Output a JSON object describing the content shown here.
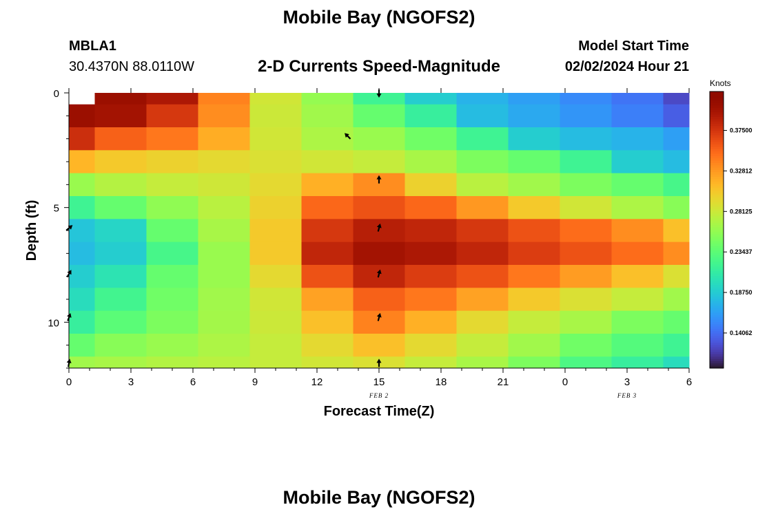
{
  "page": {
    "top_title": "Mobile Bay (NGOFS2)",
    "bottom_title": "Mobile Bay (NGOFS2)",
    "station_id": "MBLA1",
    "station_coords": "30.4370N  88.0110W",
    "subtitle": "2-D Currents Speed-Magnitude",
    "model_start_label": "Model Start Time",
    "model_start_value": "02/02/2024 Hour 21"
  },
  "chart_data": {
    "type": "heatmap",
    "title": "2-D Currents Speed-Magnitude",
    "xlabel": "Forecast Time(Z)",
    "ylabel": "Depth (ft)",
    "x_ticks": [
      "0",
      "3",
      "6",
      "9",
      "12",
      "15",
      "18",
      "21",
      "0",
      "3",
      "6"
    ],
    "x_tick_hours": [
      0,
      3,
      6,
      9,
      12,
      15,
      18,
      21,
      24,
      27,
      30
    ],
    "date_labels": [
      {
        "label": "FEB 2",
        "hour": 15
      },
      {
        "label": "FEB 3",
        "hour": 27
      }
    ],
    "y_ticks": [
      "0",
      "5",
      "10"
    ],
    "y_tick_values": [
      0,
      5,
      10
    ],
    "xlim": [
      0,
      30
    ],
    "ylim": [
      0,
      12
    ],
    "column_hours": [
      0,
      2.5,
      5,
      7.5,
      10,
      12.5,
      15,
      17.5,
      20,
      22.5,
      25,
      27.5,
      30
    ],
    "row_depths": [
      0,
      1,
      2,
      3,
      4,
      5,
      6,
      7,
      8,
      9,
      10,
      11,
      12
    ],
    "speed_knots": [
      [
        null,
        0.405,
        0.395,
        0.34,
        0.285,
        0.26,
        0.22,
        0.19,
        0.175,
        0.165,
        0.155,
        0.145,
        0.125
      ],
      [
        0.405,
        0.4,
        0.375,
        0.335,
        0.283,
        0.265,
        0.24,
        0.215,
        0.18,
        0.17,
        0.16,
        0.15,
        0.135
      ],
      [
        0.38,
        0.355,
        0.345,
        0.32,
        0.285,
        0.27,
        0.262,
        0.245,
        0.22,
        0.19,
        0.18,
        0.175,
        0.165
      ],
      [
        0.315,
        0.305,
        0.3,
        0.295,
        0.29,
        0.285,
        0.28,
        0.268,
        0.25,
        0.24,
        0.22,
        0.19,
        0.18
      ],
      [
        0.262,
        0.273,
        0.28,
        0.284,
        0.295,
        0.318,
        0.335,
        0.3,
        0.275,
        0.265,
        0.25,
        0.24,
        0.225
      ],
      [
        0.22,
        0.24,
        0.258,
        0.275,
        0.3,
        0.352,
        0.362,
        0.352,
        0.33,
        0.305,
        0.285,
        0.27,
        0.255
      ],
      [
        0.185,
        0.195,
        0.24,
        0.268,
        0.305,
        0.375,
        0.39,
        0.385,
        0.375,
        0.362,
        0.35,
        0.335,
        0.31
      ],
      [
        0.18,
        0.19,
        0.225,
        0.262,
        0.305,
        0.385,
        0.4,
        0.395,
        0.385,
        0.372,
        0.362,
        0.35,
        0.335
      ],
      [
        0.19,
        0.205,
        0.24,
        0.262,
        0.295,
        0.362,
        0.385,
        0.372,
        0.362,
        0.345,
        0.328,
        0.31,
        0.29
      ],
      [
        0.2,
        0.222,
        0.245,
        0.265,
        0.285,
        0.325,
        0.355,
        0.345,
        0.325,
        0.305,
        0.29,
        0.28,
        0.265
      ],
      [
        0.215,
        0.235,
        0.25,
        0.266,
        0.283,
        0.31,
        0.34,
        0.318,
        0.295,
        0.28,
        0.268,
        0.25,
        0.24
      ],
      [
        0.24,
        0.255,
        0.262,
        0.27,
        0.28,
        0.295,
        0.31,
        0.295,
        0.28,
        0.265,
        0.245,
        0.232,
        0.22
      ],
      [
        0.265,
        0.268,
        0.272,
        0.275,
        0.28,
        0.285,
        0.29,
        0.28,
        0.268,
        0.25,
        0.228,
        0.215,
        0.2
      ]
    ],
    "arrows": [
      {
        "hour": 15,
        "depth": 0,
        "dir_deg": 180
      },
      {
        "hour": 13.5,
        "depth": 1.9,
        "dir_deg": 315
      },
      {
        "hour": 15,
        "depth": 3.8,
        "dir_deg": 0
      },
      {
        "hour": 15,
        "depth": 5.9,
        "dir_deg": 15
      },
      {
        "hour": 15,
        "depth": 7.9,
        "dir_deg": 15
      },
      {
        "hour": 15,
        "depth": 9.8,
        "dir_deg": 15
      },
      {
        "hour": 15,
        "depth": 11.8,
        "dir_deg": 0
      },
      {
        "hour": 0,
        "depth": 5.9,
        "dir_deg": 50
      },
      {
        "hour": 0,
        "depth": 7.9,
        "dir_deg": 30
      },
      {
        "hour": 0,
        "depth": 9.8,
        "dir_deg": 20
      },
      {
        "hour": 0,
        "depth": 11.8,
        "dir_deg": 10
      }
    ],
    "colorbar": {
      "title": "Knots",
      "min": 0.1,
      "max": 0.42,
      "ticks": [
        "0.37500",
        "0.32812",
        "0.28125",
        "0.23437",
        "0.18750",
        "0.14062"
      ],
      "tick_values": [
        0.375,
        0.32812,
        0.28125,
        0.23437,
        0.1875,
        0.14062
      ]
    },
    "colors": {
      "missing": "#ffffff",
      "axis": "#000000"
    }
  }
}
